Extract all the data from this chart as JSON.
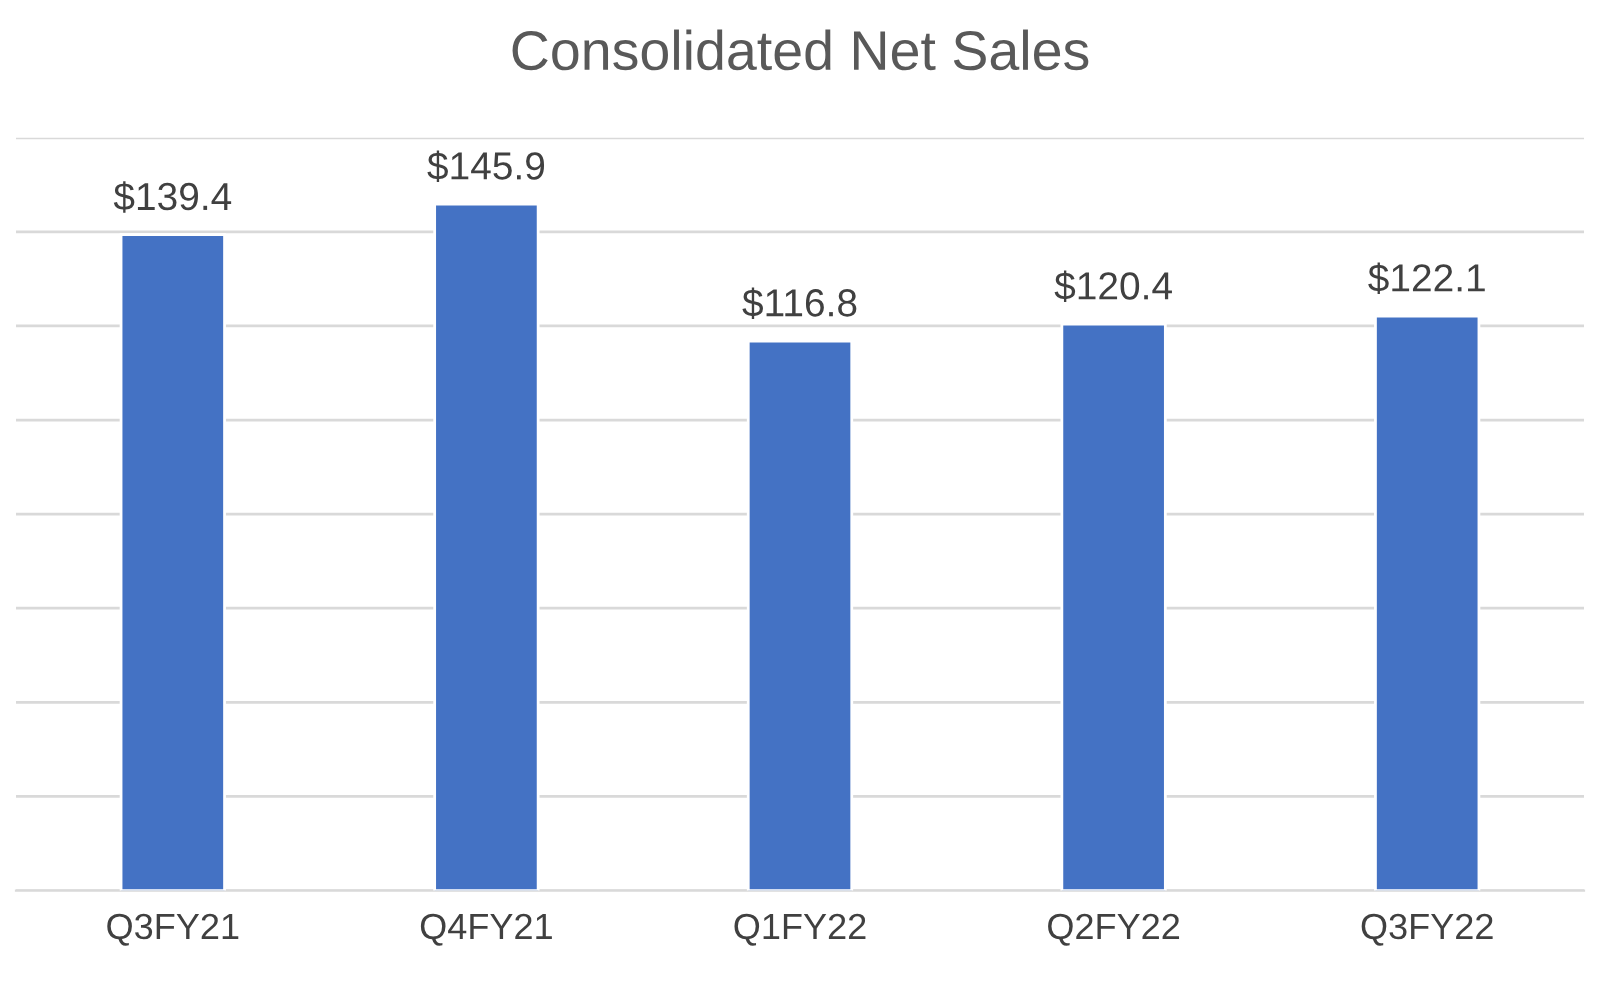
{
  "chart_data": {
    "type": "bar",
    "title": "Consolidated Net Sales",
    "categories": [
      "Q3FY21",
      "Q4FY21",
      "Q1FY22",
      "Q2FY22",
      "Q3FY22"
    ],
    "values": [
      139.4,
      145.9,
      116.8,
      120.4,
      122.1
    ],
    "value_labels": [
      "$139.4",
      "$145.9",
      "$116.8",
      "$120.4",
      "$122.1"
    ],
    "color": "#4472c4",
    "ylim": [
      0,
      160
    ],
    "yticks": [
      {
        "value": 0,
        "label": null
      },
      {
        "value": 20,
        "label": null
      },
      {
        "value": 40,
        "label": null
      },
      {
        "value": 60,
        "label": null
      },
      {
        "value": 80,
        "label": null
      },
      {
        "value": 100,
        "label": null
      },
      {
        "value": 120,
        "label": null
      },
      {
        "value": 140,
        "label": null
      },
      {
        "value": 160,
        "label": null
      }
    ],
    "tick_labels": "x",
    "grid": "y"
  }
}
